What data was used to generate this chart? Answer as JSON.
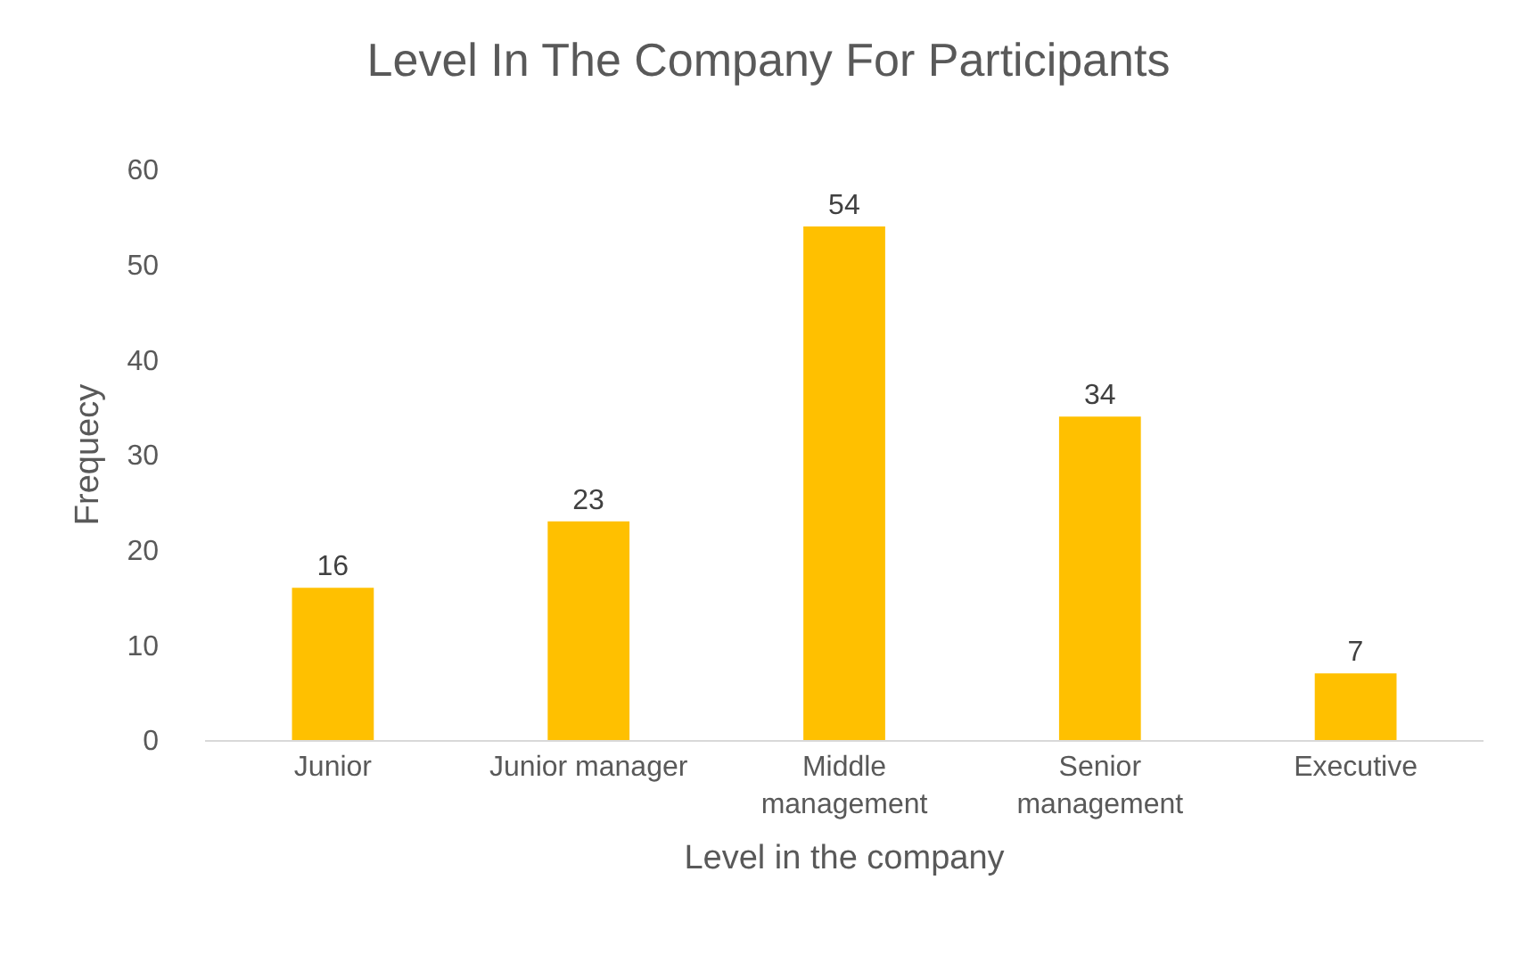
{
  "chart_data": {
    "type": "bar",
    "title": "Level In The Company For Participants",
    "xlabel": "Level in the company",
    "ylabel": "Frequecy",
    "categories": [
      "Junior",
      "Junior manager",
      "Middle\nmanagement",
      "Senior\nmanagement",
      "Executive"
    ],
    "values": [
      16,
      23,
      54,
      34,
      7
    ],
    "color": "#ffc000",
    "data_labels": true,
    "ylim": [
      0,
      60
    ],
    "yticks": [
      0,
      10,
      20,
      30,
      40,
      50,
      60
    ]
  }
}
